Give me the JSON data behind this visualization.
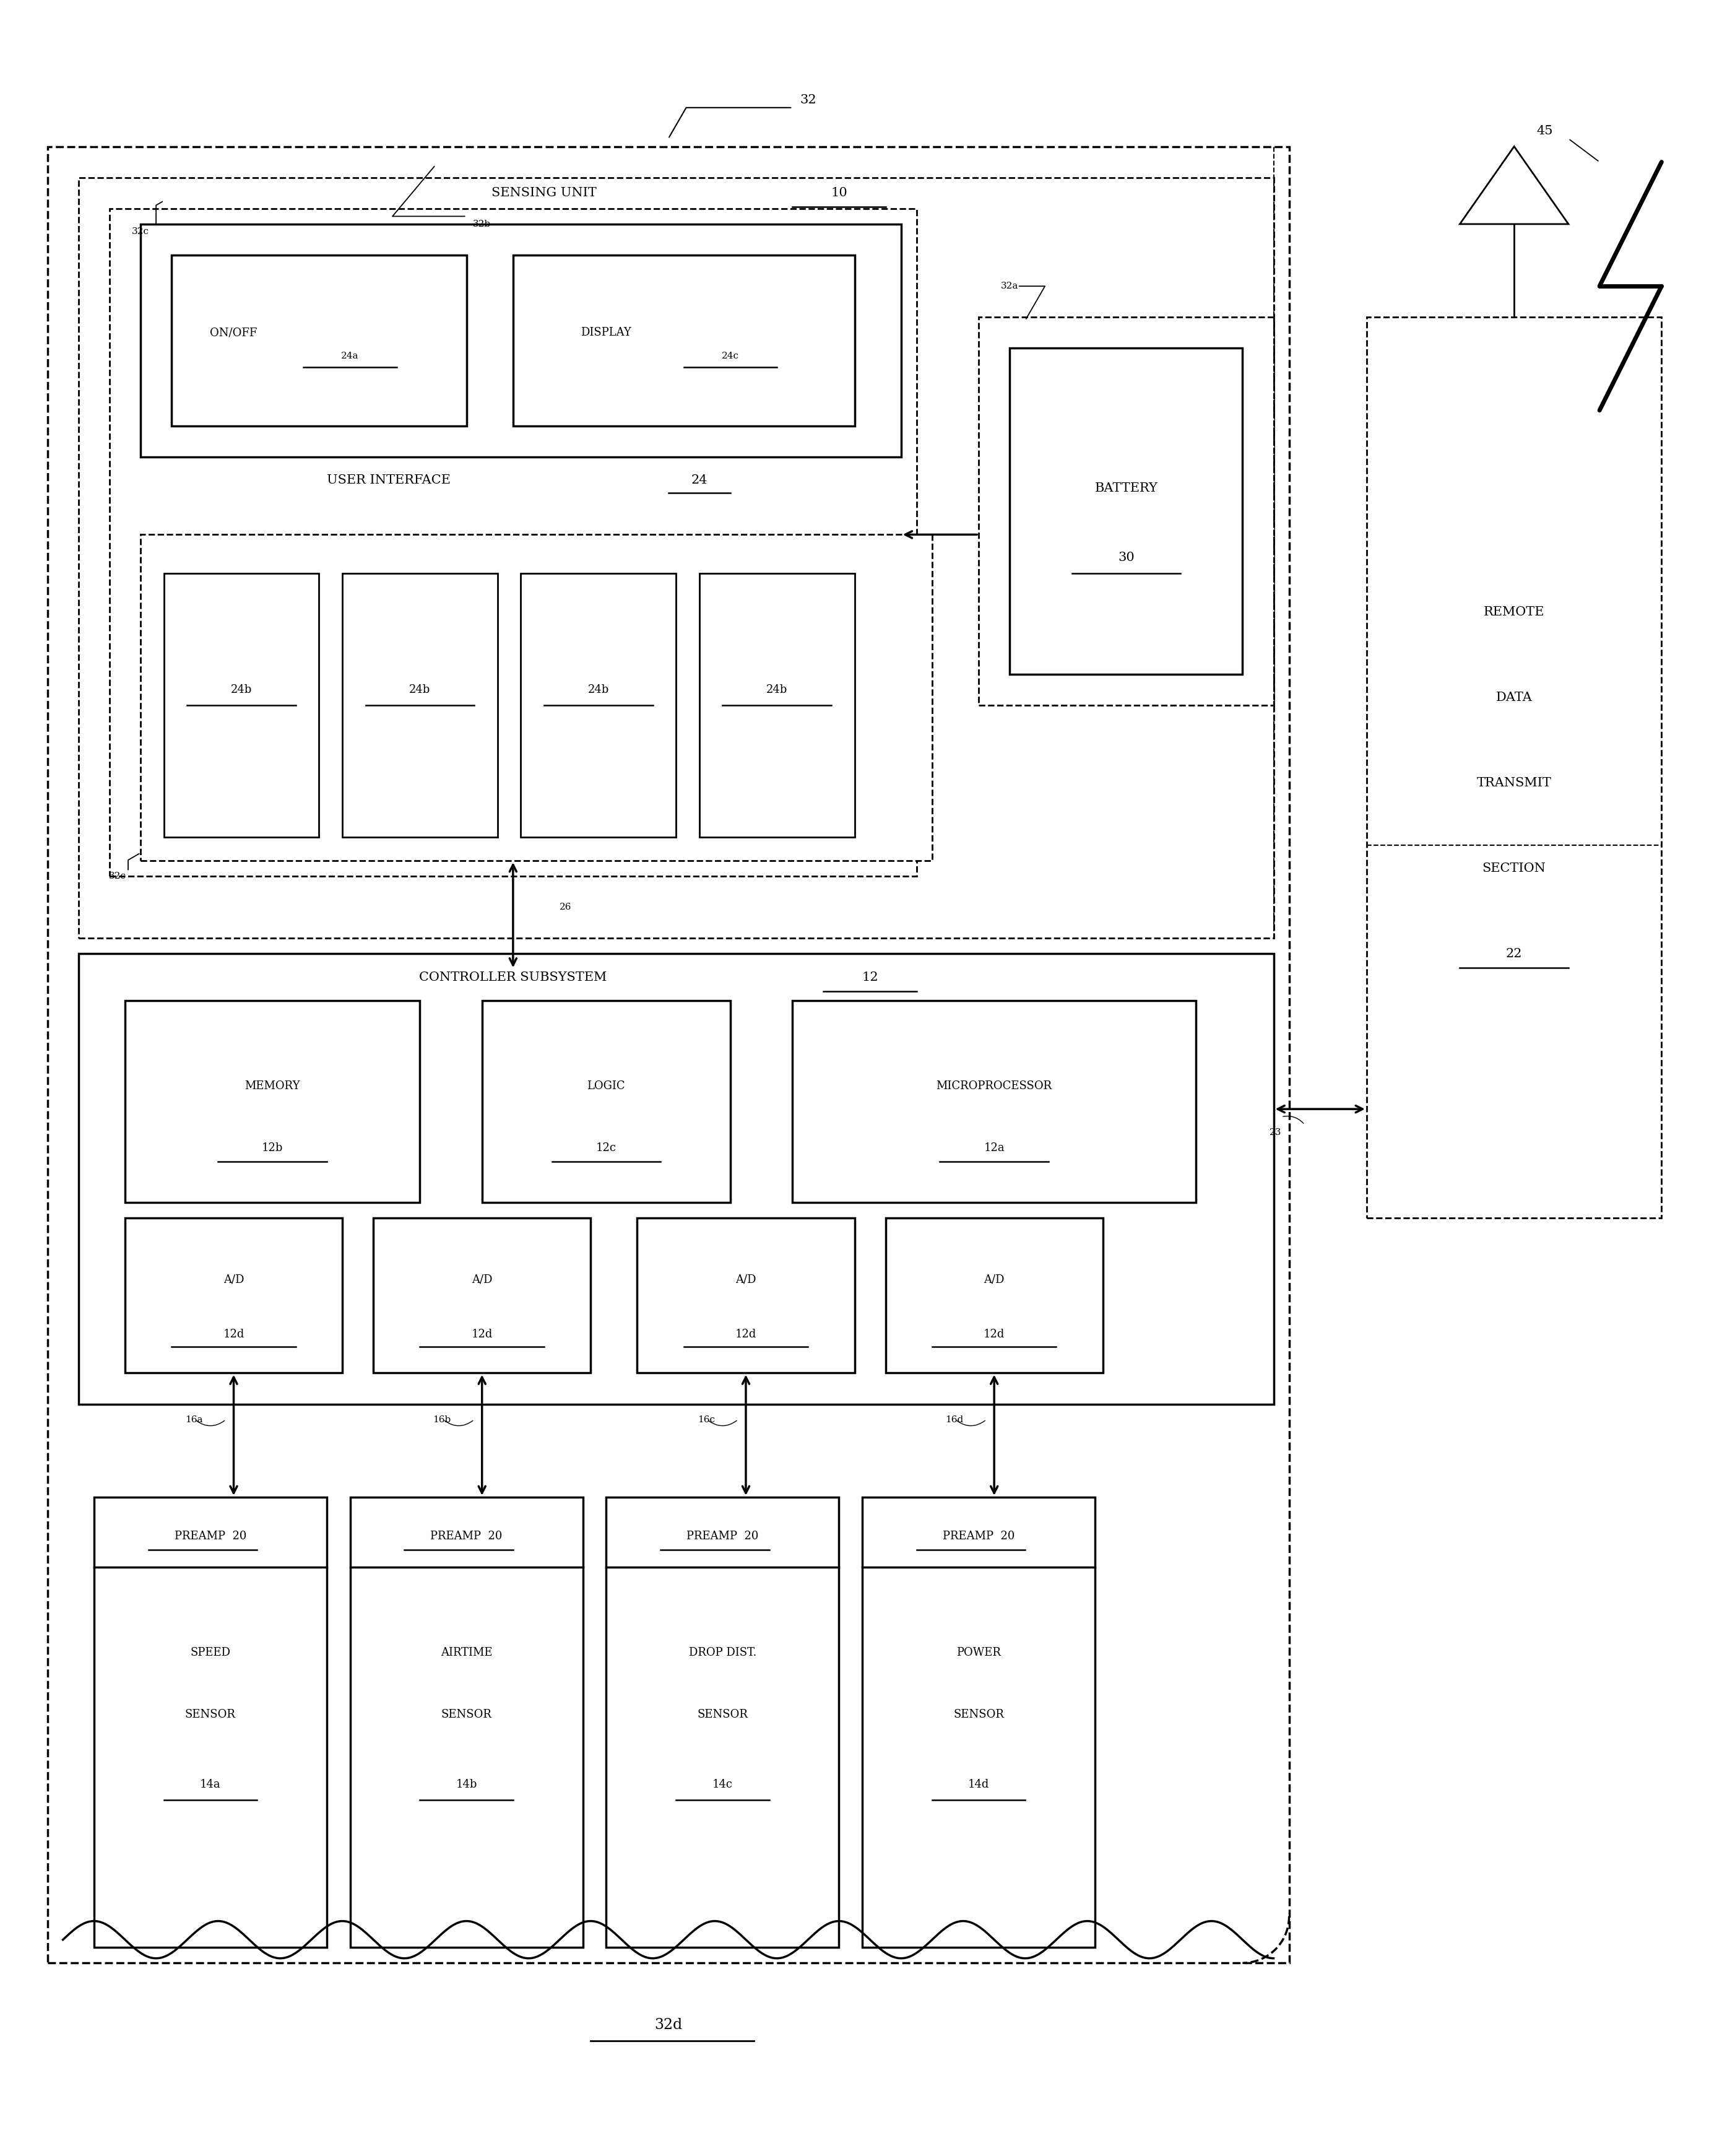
{
  "fig_width": 27.61,
  "fig_height": 34.82,
  "bg_color": "#ffffff",
  "ref_32": "32",
  "ref_32a": "32a",
  "ref_32b": "32b",
  "ref_32c": "32c",
  "ref_32d": "32d",
  "ref_26": "26",
  "ref_23": "23",
  "ref_45": "45",
  "sensing_unit_label": "SENSING UNIT",
  "sensing_unit_num": "10",
  "battery_label": "BATTERY",
  "battery_num": "30",
  "ui_label": "USER INTERFACE",
  "ui_num": "24",
  "onoff_label": "ON/OFF",
  "onoff_num": "24a",
  "display_label": "DISPLAY",
  "display_num": "24c",
  "btn_label": "24b",
  "controller_label": "CONTROLLER SUBSYSTEM",
  "controller_num": "12",
  "memory_label": "MEMORY",
  "memory_num": "12b",
  "logic_label": "LOGIC",
  "logic_num": "12c",
  "micro_label": "MICROPROCESSOR",
  "micro_num": "12a",
  "ad_label": "A/D",
  "ad_num": "12d",
  "wire_labels": [
    "16a",
    "16b",
    "16c",
    "16d"
  ],
  "preamp_label": "PREAMP",
  "preamp_num": "20",
  "sensors": [
    {
      "line1": "SPEED",
      "line2": "SENSOR",
      "num": "14a"
    },
    {
      "line1": "AIRTIME",
      "line2": "SENSOR",
      "num": "14b"
    },
    {
      "line1": "DROP DIST.",
      "line2": "SENSOR",
      "num": "14c"
    },
    {
      "line1": "POWER",
      "line2": "SENSOR",
      "num": "14d"
    }
  ],
  "remote_lines": [
    "REMOTE",
    "DATA",
    "TRANSMIT",
    "SECTION"
  ],
  "remote_num": "22"
}
